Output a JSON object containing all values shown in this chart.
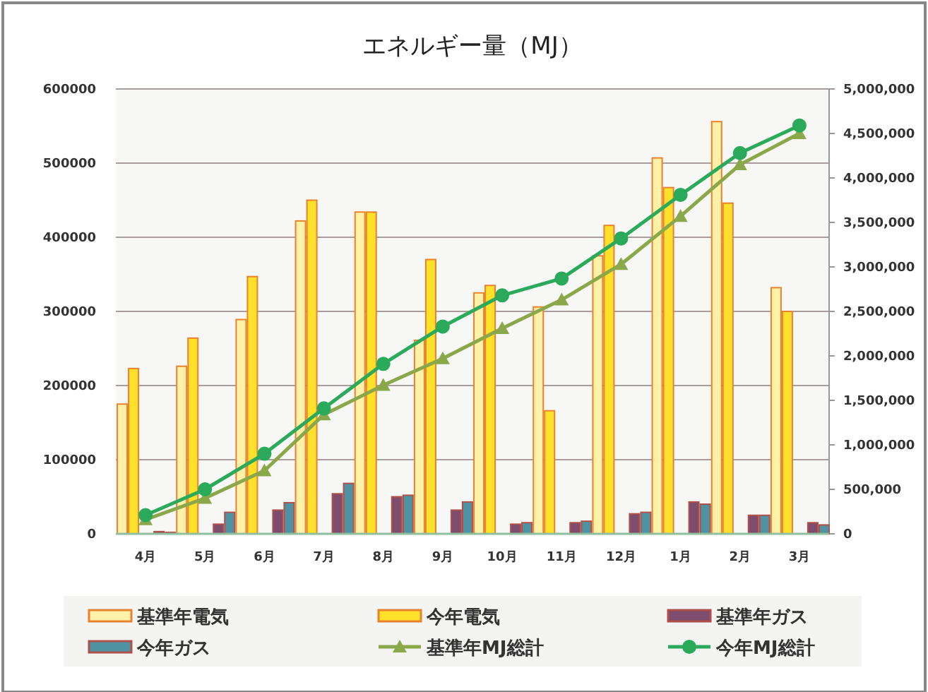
{
  "chart_data": {
    "type": "bar",
    "title": "エネルギー量（MJ）",
    "categories": [
      "4月",
      "5月",
      "6月",
      "7月",
      "8月",
      "9月",
      "10月",
      "11月",
      "12月",
      "1月",
      "2月",
      "3月"
    ],
    "ylim": [
      0,
      600000
    ],
    "yticks": [
      0,
      100000,
      200000,
      300000,
      400000,
      500000,
      600000
    ],
    "y2lim": [
      0,
      5000000
    ],
    "y2ticks": [
      {
        "value": 0,
        "label": "0"
      },
      {
        "value": 500000,
        "label": "500,000"
      },
      {
        "value": 1000000,
        "label": "1,000,000"
      },
      {
        "value": 1500000,
        "label": "1,500,000"
      },
      {
        "value": 2000000,
        "label": "2,000,000"
      },
      {
        "value": 2500000,
        "label": "2,500,000"
      },
      {
        "value": 3000000,
        "label": "3,000,000"
      },
      {
        "value": 3500000,
        "label": "3,500,000"
      },
      {
        "value": 4000000,
        "label": "4,000,000"
      },
      {
        "value": 4500000,
        "label": "4,500,000"
      },
      {
        "value": 5000000,
        "label": "5,000,000"
      }
    ],
    "grid": "y",
    "legend": "bottom",
    "series": [
      {
        "name": "基準年電気",
        "color": "#fff1a8",
        "values": [
          175000,
          226000,
          289000,
          422000,
          434000,
          261000,
          325000,
          306000,
          375000,
          507000,
          556000,
          332000
        ]
      },
      {
        "name": "今年電気",
        "color": "#ffe02a",
        "values": [
          223000,
          264000,
          347000,
          450000,
          434000,
          370000,
          335000,
          166000,
          416000,
          467000,
          446000,
          300000
        ]
      },
      {
        "name": "基準年ガス",
        "color": "#7e4c6c",
        "values": [
          3000,
          13000,
          32000,
          54000,
          50000,
          32000,
          13000,
          15000,
          27000,
          43000,
          25000,
          15000
        ]
      },
      {
        "name": "今年ガス",
        "color": "#4f93a3",
        "values": [
          2000,
          29000,
          42000,
          68000,
          52000,
          43000,
          15000,
          17000,
          29000,
          40000,
          25000,
          12000
        ]
      },
      {
        "name": "基準年MJ総計",
        "type": "line",
        "axis": "y2",
        "marker": "triangle",
        "color": "#8aa84a",
        "values": [
          160000,
          400000,
          710000,
          1340000,
          1670000,
          1970000,
          2310000,
          2630000,
          3030000,
          3570000,
          4150000,
          4500000
        ]
      },
      {
        "name": "今年MJ総計",
        "type": "line",
        "axis": "y2",
        "marker": "circle",
        "color": "#2aaa5a",
        "values": [
          210000,
          500000,
          900000,
          1410000,
          1910000,
          2330000,
          2680000,
          2870000,
          3320000,
          3810000,
          4280000,
          4590000
        ]
      }
    ]
  }
}
